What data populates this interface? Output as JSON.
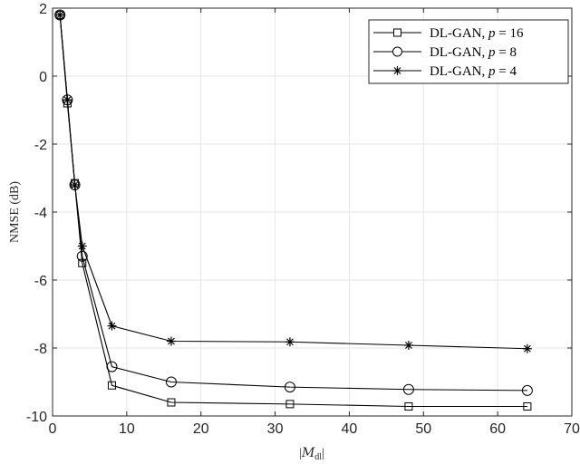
{
  "chart_data": {
    "type": "line",
    "title": "",
    "xlabel": "|M_dl|",
    "ylabel": "NMSE (dB)",
    "xlim": [
      0,
      70
    ],
    "ylim": [
      -10,
      2
    ],
    "xticks": [
      0,
      10,
      20,
      30,
      40,
      50,
      60,
      70
    ],
    "yticks": [
      2,
      0,
      -2,
      -4,
      -6,
      -8,
      -10
    ],
    "grid": true,
    "legend_position": "upper right",
    "x": [
      1,
      2,
      3,
      4,
      8,
      16,
      32,
      48,
      64
    ],
    "series": [
      {
        "name": "DL-GAN, p = 16",
        "marker": "square",
        "values": [
          1.8,
          -0.8,
          -3.15,
          -5.5,
          -9.1,
          -9.6,
          -9.65,
          -9.72,
          -9.72
        ]
      },
      {
        "name": "DL-GAN, p = 8",
        "marker": "circle",
        "values": [
          1.8,
          -0.7,
          -3.2,
          -5.3,
          -8.55,
          -9.0,
          -9.15,
          -9.22,
          -9.25
        ]
      },
      {
        "name": "DL-GAN, p = 4",
        "marker": "asterisk",
        "values": [
          1.8,
          -0.7,
          -3.2,
          -5.0,
          -7.35,
          -7.8,
          -7.82,
          -7.92,
          -8.02
        ]
      }
    ]
  },
  "labels": {
    "ylabel": "NMSE (dB)",
    "xlabel_prefix": "|",
    "xlabel_main": "M",
    "xlabel_sub": "dl",
    "xlabel_suffix": "|"
  },
  "legend": [
    {
      "prefix": "DL-GAN, ",
      "var": "p",
      "eq": " = 16"
    },
    {
      "prefix": "DL-GAN, ",
      "var": "p",
      "eq": " = 8"
    },
    {
      "prefix": "DL-GAN, ",
      "var": "p",
      "eq": " = 4"
    }
  ]
}
